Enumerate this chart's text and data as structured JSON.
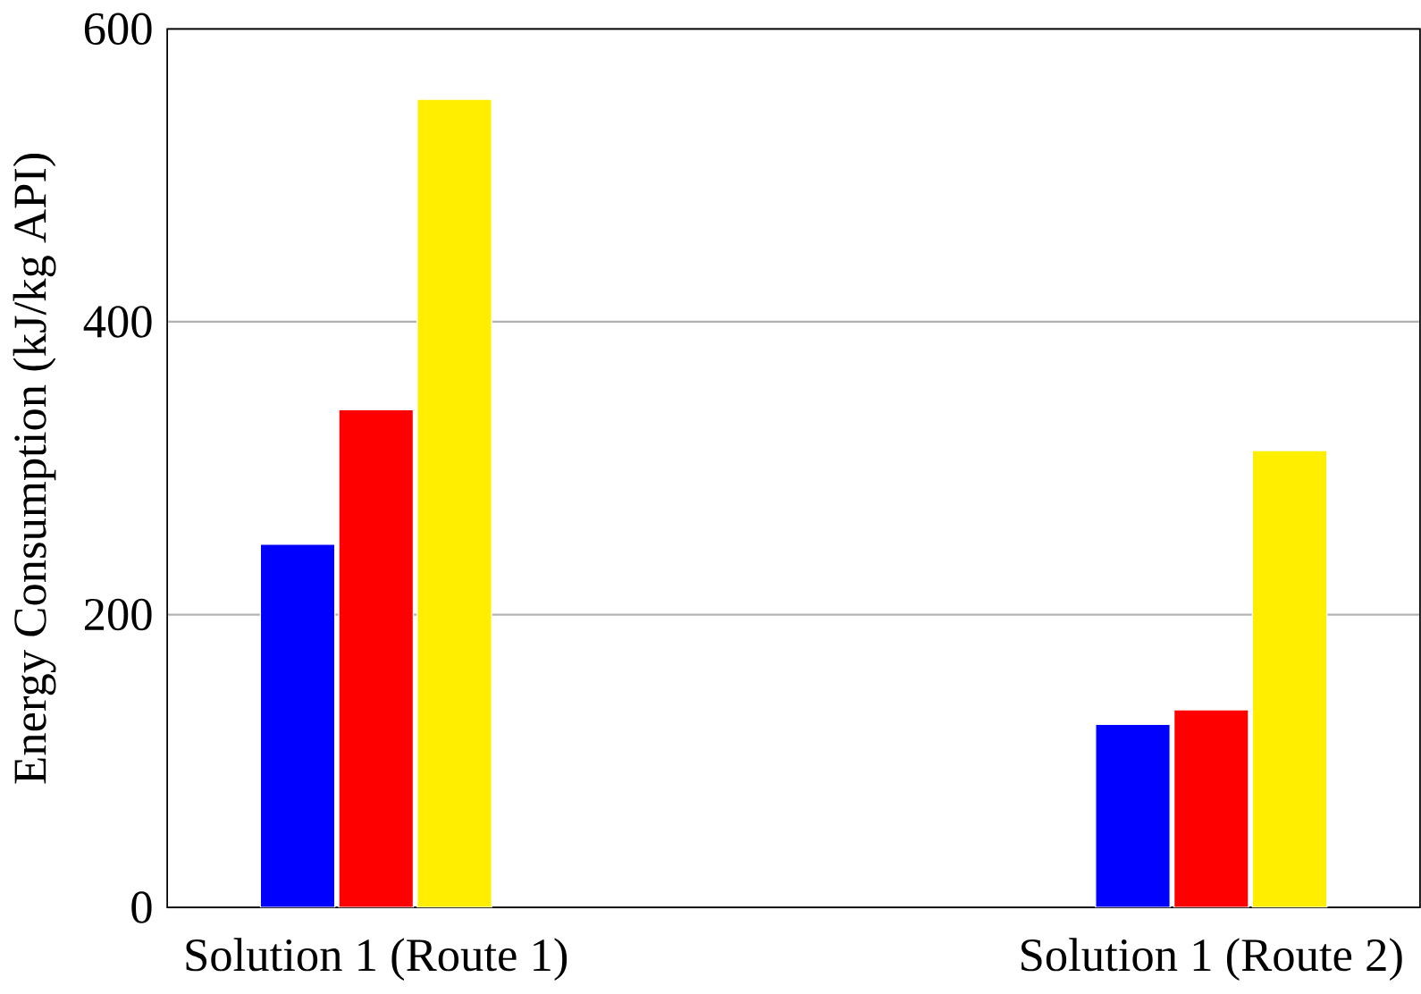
{
  "chart_data": {
    "type": "bar",
    "ylabel": "Energy Consumption (kJ/kg API)",
    "categories": [
      "Solution 1 (Route 1)",
      "Solution 1 (Route 2)"
    ],
    "series": [
      {
        "color": "#0000ff",
        "values": [
          248,
          125
        ]
      },
      {
        "color": "#ff0000",
        "values": [
          340,
          135
        ]
      },
      {
        "color": "#ffee00",
        "values": [
          552,
          312
        ]
      }
    ],
    "ylim": [
      0,
      600
    ],
    "yticks": [
      0,
      200,
      400,
      600
    ],
    "grid": "y"
  }
}
